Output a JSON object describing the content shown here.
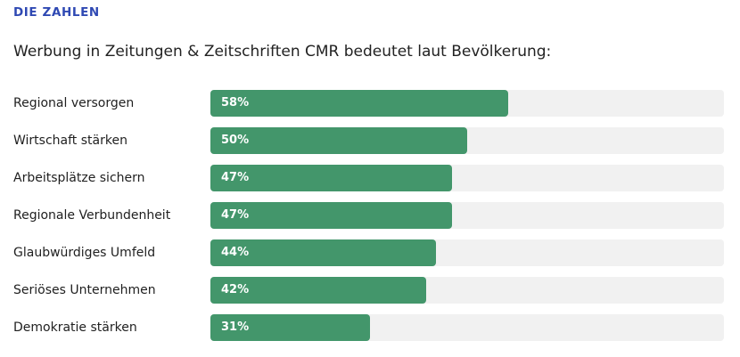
{
  "header": {
    "eyebrow": "DIE ZAHLEN",
    "title": "Werbung in Zeitungen & Zeitschriften CMR bedeutet laut Bevölkerung:"
  },
  "colors": {
    "accent": "#2f49b3",
    "bar": "#43966b",
    "track": "#f1f1f1"
  },
  "chart_data": {
    "type": "bar",
    "orientation": "horizontal",
    "title": "Werbung in Zeitungen & Zeitschriften CMR bedeutet laut Bevölkerung:",
    "categories": [
      "Regional versorgen",
      "Wirtschaft stärken",
      "Arbeitsplätze sichern",
      "Regionale Verbundenheit",
      "Glaubwürdiges Umfeld",
      "Seriöses Unternehmen",
      "Demokratie stärken"
    ],
    "values": [
      58,
      50,
      47,
      47,
      44,
      42,
      31
    ],
    "value_labels": [
      "58%",
      "50%",
      "47%",
      "47%",
      "44%",
      "42%",
      "31%"
    ],
    "unit": "%",
    "xlim": [
      0,
      100
    ],
    "grid": false,
    "legend": "none"
  }
}
